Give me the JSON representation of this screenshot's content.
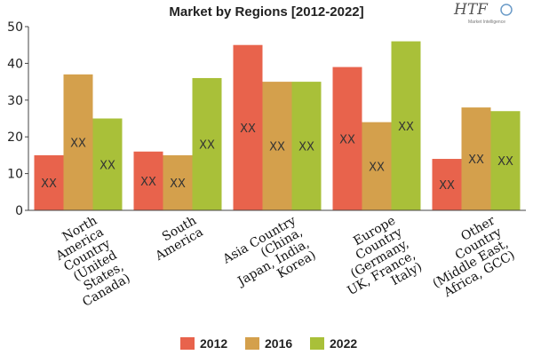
{
  "chart_data": {
    "type": "bar",
    "title": "Market by Regions [2012-2022]",
    "categories": [
      [
        "North",
        "America",
        "Country",
        "(United",
        "States,",
        "Canada)"
      ],
      [
        "South",
        "America"
      ],
      [
        "Asia Country",
        "(China,",
        "Japan, India,",
        "Korea)"
      ],
      [
        "Europe",
        "Country",
        "(Germany,",
        "UK, France,",
        "Italy)"
      ],
      [
        "Other",
        "Country",
        "(Middle East,",
        "Africa, GCC)"
      ]
    ],
    "series": [
      {
        "name": "2012",
        "color": "#e8634c",
        "values": [
          15,
          16,
          45,
          39,
          14
        ]
      },
      {
        "name": "2016",
        "color": "#d4a04c",
        "values": [
          37,
          15,
          35,
          24,
          28
        ]
      },
      {
        "name": "2022",
        "color": "#a9c039",
        "values": [
          25,
          36,
          35,
          46,
          27
        ]
      }
    ],
    "data_label": "XX",
    "ylim": [
      0,
      50
    ],
    "yticks": [
      0,
      10,
      20,
      30,
      40,
      50
    ],
    "xlabel": "",
    "ylabel": "",
    "grid": false,
    "legend": "bottom"
  },
  "logo": {
    "main": "HTF",
    "sub": "Market Intelligence"
  }
}
